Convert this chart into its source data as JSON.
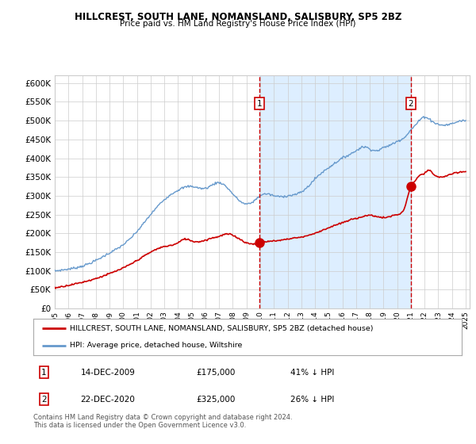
{
  "title": "HILLCREST, SOUTH LANE, NOMANSLAND, SALISBURY, SP5 2BZ",
  "subtitle": "Price paid vs. HM Land Registry's House Price Index (HPI)",
  "legend_line1": "HILLCREST, SOUTH LANE, NOMANSLAND, SALISBURY, SP5 2BZ (detached house)",
  "legend_line2": "HPI: Average price, detached house, Wiltshire",
  "annotation1": {
    "label": "1",
    "date_str": "14-DEC-2009",
    "price_str": "£175,000",
    "pct_str": "41% ↓ HPI"
  },
  "annotation2": {
    "label": "2",
    "date_str": "22-DEC-2020",
    "price_str": "£325,000",
    "pct_str": "26% ↓ HPI"
  },
  "footer": "Contains HM Land Registry data © Crown copyright and database right 2024.\nThis data is licensed under the Open Government Licence v3.0.",
  "red_color": "#cc0000",
  "blue_color": "#6699cc",
  "shade_color": "#ddeeff",
  "grid_color": "#cccccc",
  "bg_color": "#ffffff",
  "ylim": [
    0,
    620000
  ],
  "yticks": [
    0,
    50000,
    100000,
    150000,
    200000,
    250000,
    300000,
    350000,
    400000,
    450000,
    500000,
    550000,
    600000
  ],
  "x_start_year": 1995,
  "x_end_year": 2025,
  "sale1_year": 2009.96,
  "sale1_value_red": 175000,
  "sale2_year": 2020.98,
  "sale2_value_red": 325000,
  "blue_keypoints": [
    [
      1995.0,
      100000
    ],
    [
      1996.0,
      105000
    ],
    [
      1997.0,
      113000
    ],
    [
      1998.0,
      128000
    ],
    [
      1999.0,
      148000
    ],
    [
      2000.0,
      170000
    ],
    [
      2001.0,
      205000
    ],
    [
      2002.0,
      250000
    ],
    [
      2003.0,
      290000
    ],
    [
      2004.0,
      315000
    ],
    [
      2005.0,
      325000
    ],
    [
      2006.0,
      320000
    ],
    [
      2007.0,
      335000
    ],
    [
      2008.0,
      305000
    ],
    [
      2009.0,
      278000
    ],
    [
      2009.5,
      285000
    ],
    [
      2010.0,
      300000
    ],
    [
      2010.5,
      305000
    ],
    [
      2011.0,
      300000
    ],
    [
      2011.5,
      298000
    ],
    [
      2012.0,
      300000
    ],
    [
      2013.0,
      310000
    ],
    [
      2013.5,
      325000
    ],
    [
      2014.0,
      345000
    ],
    [
      2015.0,
      375000
    ],
    [
      2016.0,
      400000
    ],
    [
      2017.0,
      420000
    ],
    [
      2017.5,
      430000
    ],
    [
      2018.0,
      425000
    ],
    [
      2018.5,
      420000
    ],
    [
      2019.0,
      428000
    ],
    [
      2019.5,
      435000
    ],
    [
      2020.0,
      445000
    ],
    [
      2020.5,
      455000
    ],
    [
      2021.0,
      475000
    ],
    [
      2021.5,
      495000
    ],
    [
      2022.0,
      510000
    ],
    [
      2022.3,
      505000
    ],
    [
      2022.7,
      495000
    ],
    [
      2023.0,
      490000
    ],
    [
      2023.5,
      488000
    ],
    [
      2024.0,
      492000
    ],
    [
      2024.5,
      498000
    ],
    [
      2025.0,
      500000
    ]
  ],
  "red_keypoints": [
    [
      1995.0,
      55000
    ],
    [
      1996.0,
      62000
    ],
    [
      1997.0,
      70000
    ],
    [
      1998.0,
      80000
    ],
    [
      1999.0,
      93000
    ],
    [
      2000.0,
      108000
    ],
    [
      2001.0,
      128000
    ],
    [
      2002.0,
      150000
    ],
    [
      2003.0,
      165000
    ],
    [
      2004.0,
      175000
    ],
    [
      2004.5,
      185000
    ],
    [
      2005.0,
      180000
    ],
    [
      2005.5,
      178000
    ],
    [
      2006.0,
      182000
    ],
    [
      2006.5,
      188000
    ],
    [
      2007.0,
      192000
    ],
    [
      2007.5,
      198000
    ],
    [
      2008.0,
      195000
    ],
    [
      2008.5,
      185000
    ],
    [
      2009.0,
      175000
    ],
    [
      2009.5,
      172000
    ],
    [
      2010.0,
      175000
    ],
    [
      2010.5,
      178000
    ],
    [
      2011.0,
      180000
    ],
    [
      2011.5,
      182000
    ],
    [
      2012.0,
      185000
    ],
    [
      2012.5,
      188000
    ],
    [
      2013.0,
      190000
    ],
    [
      2013.5,
      195000
    ],
    [
      2014.0,
      200000
    ],
    [
      2014.5,
      208000
    ],
    [
      2015.0,
      215000
    ],
    [
      2015.5,
      222000
    ],
    [
      2016.0,
      228000
    ],
    [
      2016.5,
      235000
    ],
    [
      2017.0,
      240000
    ],
    [
      2017.5,
      245000
    ],
    [
      2018.0,
      248000
    ],
    [
      2018.5,
      245000
    ],
    [
      2019.0,
      242000
    ],
    [
      2019.5,
      245000
    ],
    [
      2020.0,
      250000
    ],
    [
      2020.5,
      265000
    ],
    [
      2021.0,
      325000
    ],
    [
      2021.3,
      340000
    ],
    [
      2021.7,
      355000
    ],
    [
      2022.0,
      360000
    ],
    [
      2022.3,
      368000
    ],
    [
      2022.7,
      355000
    ],
    [
      2023.0,
      350000
    ],
    [
      2023.5,
      352000
    ],
    [
      2024.0,
      358000
    ],
    [
      2024.5,
      362000
    ],
    [
      2025.0,
      365000
    ]
  ]
}
